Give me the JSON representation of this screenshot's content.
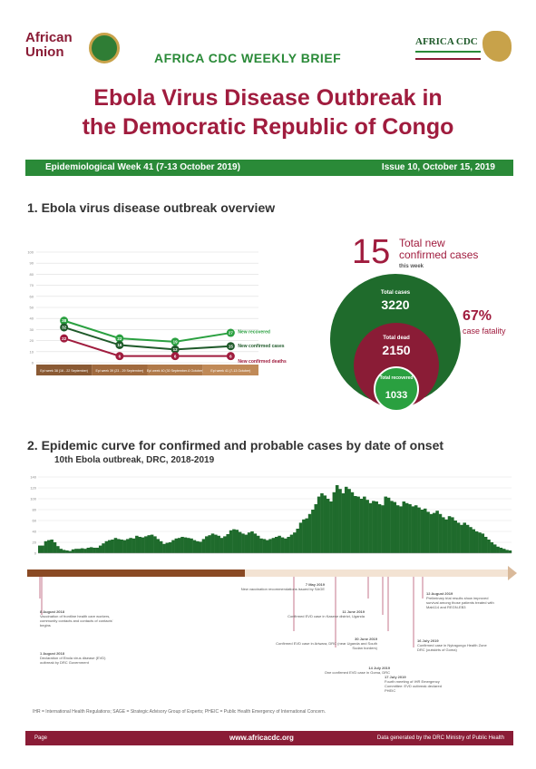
{
  "header": {
    "au_logo_text_1": "African",
    "au_logo_text_2": "Union",
    "brief_title": "AFRICA CDC WEEKLY BRIEF",
    "cdc_logo_text": "AFRICA CDC"
  },
  "title": {
    "line1": "Ebola Virus Disease Outbreak in",
    "line2": "the Democratic Republic of Congo"
  },
  "week_bar": {
    "left": "Epidemiological Week 41 (7-13 October 2019)",
    "right": "Issue 10, October 15, 2019"
  },
  "section1": {
    "heading": "1. Ebola virus disease outbreak overview",
    "new_cases_value": "15",
    "new_cases_label": "Total new confirmed cases",
    "new_cases_sub": "this week",
    "total_cases_label": "Total cases",
    "total_cases_value": "3220",
    "total_dead_label": "Total dead",
    "total_dead_value": "2150",
    "total_recovered_label": "Total recovered",
    "total_recovered_value": "1033",
    "fatality_pct": "67%",
    "fatality_label": "case fatality"
  },
  "section2": {
    "heading": "2. Epidemic curve for confirmed and probable cases by date of onset",
    "subtitle": "10th Ebola outbreak, DRC, 2018-2019"
  },
  "chart_data": [
    {
      "type": "line",
      "categories": [
        "Epi week 38 (16 - 22 September)",
        "Epi week 39 (23 - 29 September)",
        "Epi week 40 (30 September-6 October)",
        "Epi week 41 (7-13 October)"
      ],
      "series": [
        {
          "name": "New recovered",
          "values": [
            38,
            22,
            19,
            27
          ],
          "color": "#2aa040"
        },
        {
          "name": "New confirmed cases",
          "values": [
            32,
            16,
            12,
            15
          ],
          "color": "#1f5a2a"
        },
        {
          "name": "New confirmed deaths",
          "values": [
            22,
            6,
            6,
            6
          ],
          "color": "#a01c3e"
        }
      ],
      "ylim": [
        0,
        100
      ],
      "yticks": [
        0,
        10,
        20,
        30,
        40,
        50,
        60,
        70,
        80,
        90,
        100
      ]
    },
    {
      "type": "bar",
      "title": "10th Ebola outbreak, DRC, 2018-2019",
      "yticks": [
        0,
        20,
        40,
        60,
        80,
        100,
        120,
        140
      ],
      "ylim": [
        0,
        140
      ],
      "color": "#1f6b2c",
      "values": [
        14,
        14,
        22,
        24,
        25,
        20,
        13,
        8,
        6,
        5,
        4,
        7,
        8,
        8,
        9,
        8,
        10,
        11,
        10,
        10,
        14,
        18,
        22,
        24,
        25,
        28,
        26,
        25,
        24,
        26,
        28,
        27,
        32,
        30,
        29,
        31,
        33,
        34,
        31,
        26,
        22,
        17,
        19,
        20,
        24,
        27,
        28,
        30,
        29,
        28,
        27,
        24,
        22,
        21,
        26,
        31,
        33,
        36,
        34,
        32,
        28,
        31,
        35,
        42,
        44,
        43,
        39,
        36,
        34,
        38,
        40,
        36,
        32,
        27,
        26,
        24,
        26,
        28,
        30,
        32,
        29,
        27,
        30,
        34,
        38,
        45,
        56,
        62,
        64,
        72,
        80,
        90,
        104,
        110,
        106,
        100,
        95,
        112,
        125,
        118,
        110,
        122,
        118,
        112,
        105,
        104,
        100,
        104,
        98,
        92,
        96,
        95,
        90,
        88,
        104,
        102,
        96,
        94,
        88,
        86,
        95,
        92,
        90,
        86,
        88,
        84,
        80,
        82,
        76,
        72,
        74,
        78,
        72,
        66,
        62,
        68,
        66,
        60,
        56,
        52,
        56,
        52,
        48,
        44,
        40,
        38,
        36,
        30,
        25,
        20,
        16,
        12,
        10,
        8,
        6,
        5
      ]
    }
  ],
  "timeline_events": [
    {
      "date": "1 August 2018",
      "text": "Declaration of Ebola virus disease (EVD) outbreak by DRC Government"
    },
    {
      "date": "8 August 2018",
      "text": "Vaccination of frontline health care workers, community contacts and contacts of contacts' begins"
    },
    {
      "date": "7 May 2019",
      "text": "New vaccination recommendations issued by SAGE"
    },
    {
      "date": "11 June 2019",
      "text": "Confirmed EVD case in Kasese district, Uganda"
    },
    {
      "date": "30 June 2019",
      "text": "Confirmed EVD case in Ariwara, DRC (near Uganda and South Sudan borders)"
    },
    {
      "date": "14 July 2019",
      "text": "One confirmed EVD case in Goma, DRC"
    },
    {
      "date": "17 July 2019",
      "text": "Fourth meeting of IHR Emergency Committee: EVD outbreak declared PHEIC"
    },
    {
      "date": "16 July 2019",
      "text": "Confirmed case in Nyiragongo Health Zone DRC (outskirts of Goma)"
    },
    {
      "date": "12 August 2019",
      "text": "Preliminary trial results show improved survival among those patients treated with Mab114 and REGN-EB3"
    }
  ],
  "footnote": "IHR = International Health Regulations; SAGE = Strategic Advisory Group of Experts; PHEIC = Public Health Emergency of International Concern.",
  "footer": {
    "page": "Page",
    "url": "www.africacdc.org",
    "by": "Data generated by the DRC Ministry of Public Health"
  },
  "colors": {
    "brand_red": "#a01c3e",
    "brand_green": "#2a8a38",
    "bar_green": "#1f6b2c"
  }
}
